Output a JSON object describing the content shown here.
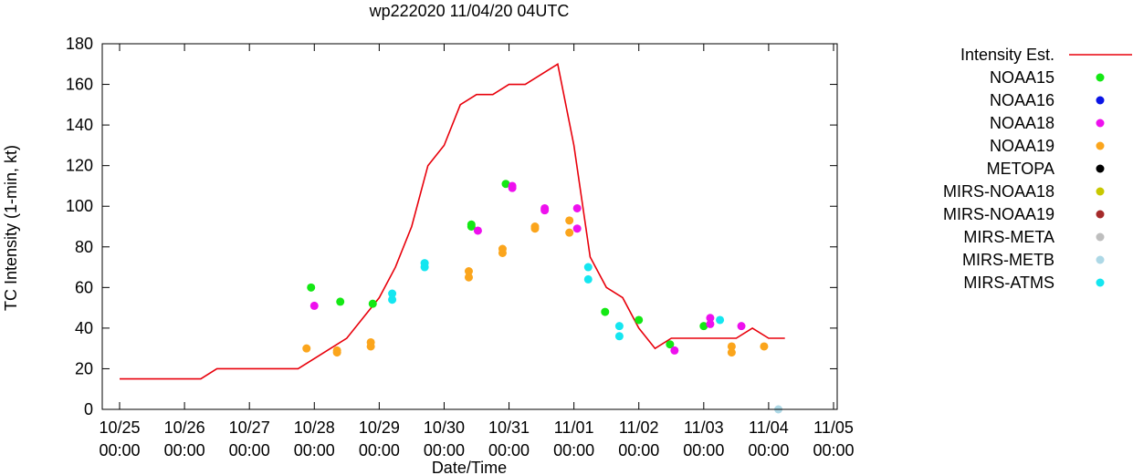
{
  "chart_data": {
    "type": "scatter",
    "title": "wp222020 11/04/20 04UTC",
    "xlabel": "Date/Time",
    "ylabel": "TC Intensity (1-min, kt)",
    "xlim": [
      0,
      11
    ],
    "ylim": [
      0,
      180
    ],
    "yticks": [
      0,
      20,
      40,
      60,
      80,
      100,
      120,
      140,
      160,
      180
    ],
    "xticks": [
      {
        "x": 0,
        "date": "10/25",
        "time": "00:00"
      },
      {
        "x": 1,
        "date": "10/26",
        "time": "00:00"
      },
      {
        "x": 2,
        "date": "10/27",
        "time": "00:00"
      },
      {
        "x": 3,
        "date": "10/28",
        "time": "00:00"
      },
      {
        "x": 4,
        "date": "10/29",
        "time": "00:00"
      },
      {
        "x": 5,
        "date": "10/30",
        "time": "00:00"
      },
      {
        "x": 6,
        "date": "10/31",
        "time": "00:00"
      },
      {
        "x": 7,
        "date": "11/01",
        "time": "00:00"
      },
      {
        "x": 8,
        "date": "11/02",
        "time": "00:00"
      },
      {
        "x": 9,
        "date": "11/03",
        "time": "00:00"
      },
      {
        "x": 10,
        "date": "11/04",
        "time": "00:00"
      },
      {
        "x": 11,
        "date": "11/05",
        "time": "00:00"
      }
    ],
    "x_units": "days since 10/25 00:00",
    "line_series": {
      "name": "Intensity Est.",
      "color": "#e8000b",
      "points": [
        [
          0.0,
          15
        ],
        [
          0.25,
          15
        ],
        [
          0.5,
          15
        ],
        [
          0.75,
          15
        ],
        [
          1.0,
          15
        ],
        [
          1.25,
          15
        ],
        [
          1.5,
          20
        ],
        [
          1.75,
          20
        ],
        [
          2.0,
          20
        ],
        [
          2.25,
          20
        ],
        [
          2.5,
          20
        ],
        [
          2.75,
          20
        ],
        [
          3.0,
          25
        ],
        [
          3.25,
          30
        ],
        [
          3.5,
          35
        ],
        [
          3.75,
          45
        ],
        [
          4.0,
          55
        ],
        [
          4.25,
          70
        ],
        [
          4.5,
          90
        ],
        [
          4.75,
          120
        ],
        [
          5.0,
          130
        ],
        [
          5.25,
          150
        ],
        [
          5.5,
          155
        ],
        [
          5.75,
          155
        ],
        [
          6.0,
          160
        ],
        [
          6.25,
          160
        ],
        [
          6.5,
          165
        ],
        [
          6.75,
          170
        ],
        [
          7.0,
          130
        ],
        [
          7.25,
          75
        ],
        [
          7.5,
          60
        ],
        [
          7.75,
          55
        ],
        [
          8.0,
          40
        ],
        [
          8.25,
          30
        ],
        [
          8.5,
          35
        ],
        [
          8.75,
          35
        ],
        [
          9.0,
          35
        ],
        [
          9.25,
          35
        ],
        [
          9.5,
          35
        ],
        [
          9.75,
          40
        ],
        [
          10.0,
          35
        ],
        [
          10.25,
          35
        ]
      ]
    },
    "legend_position": "right",
    "legend": [
      {
        "name": "Intensity Est.",
        "color": "#e8000b",
        "kind": "line"
      },
      {
        "name": "NOAA15",
        "color": "#14e814",
        "kind": "point"
      },
      {
        "name": "NOAA16",
        "color": "#0a14e6",
        "kind": "point"
      },
      {
        "name": "NOAA18",
        "color": "#ee10ee",
        "kind": "point"
      },
      {
        "name": "NOAA19",
        "color": "#fba51c",
        "kind": "point"
      },
      {
        "name": "METOPA",
        "color": "#000000",
        "kind": "point"
      },
      {
        "name": "MIRS-NOAA18",
        "color": "#c8c800",
        "kind": "point"
      },
      {
        "name": "MIRS-NOAA19",
        "color": "#a52a2a",
        "kind": "point"
      },
      {
        "name": "MIRS-META",
        "color": "#bebebe",
        "kind": "point"
      },
      {
        "name": "MIRS-METB",
        "color": "#add8e6",
        "kind": "point"
      },
      {
        "name": "MIRS-ATMS",
        "color": "#14e6f0",
        "kind": "point"
      }
    ],
    "point_series": [
      {
        "name": "NOAA15",
        "color": "#14e814",
        "points": [
          [
            2.95,
            60
          ],
          [
            3.4,
            53
          ],
          [
            3.9,
            52
          ],
          [
            5.42,
            91
          ],
          [
            5.42,
            90
          ],
          [
            5.95,
            111
          ],
          [
            7.48,
            48
          ],
          [
            8.0,
            44
          ],
          [
            8.48,
            32
          ],
          [
            9.0,
            41
          ]
        ]
      },
      {
        "name": "NOAA16",
        "color": "#0a14e6",
        "points": []
      },
      {
        "name": "NOAA18",
        "color": "#ee10ee",
        "points": [
          [
            3.0,
            51
          ],
          [
            5.52,
            88
          ],
          [
            6.05,
            110
          ],
          [
            6.05,
            109
          ],
          [
            6.55,
            99
          ],
          [
            6.55,
            98
          ],
          [
            7.05,
            99
          ],
          [
            7.05,
            89
          ],
          [
            8.55,
            29
          ],
          [
            9.1,
            45
          ],
          [
            9.1,
            42
          ],
          [
            9.58,
            41
          ]
        ]
      },
      {
        "name": "NOAA19",
        "color": "#fba51c",
        "points": [
          [
            2.88,
            30
          ],
          [
            3.35,
            29
          ],
          [
            3.35,
            28
          ],
          [
            3.87,
            33
          ],
          [
            3.87,
            31
          ],
          [
            5.38,
            68
          ],
          [
            5.38,
            65
          ],
          [
            5.9,
            79
          ],
          [
            5.9,
            77
          ],
          [
            6.4,
            90
          ],
          [
            6.4,
            89
          ],
          [
            6.93,
            93
          ],
          [
            6.93,
            87
          ],
          [
            9.43,
            31
          ],
          [
            9.43,
            28
          ],
          [
            9.93,
            31
          ]
        ]
      },
      {
        "name": "METOPA",
        "color": "#000000",
        "points": []
      },
      {
        "name": "MIRS-NOAA18",
        "color": "#c8c800",
        "points": []
      },
      {
        "name": "MIRS-NOAA19",
        "color": "#a52a2a",
        "points": []
      },
      {
        "name": "MIRS-META",
        "color": "#bebebe",
        "points": []
      },
      {
        "name": "MIRS-METB",
        "color": "#add8e6",
        "points": [
          [
            10.15,
            0
          ]
        ]
      },
      {
        "name": "MIRS-ATMS",
        "color": "#14e6f0",
        "points": [
          [
            4.2,
            57
          ],
          [
            4.2,
            54
          ],
          [
            4.7,
            72
          ],
          [
            4.7,
            70
          ],
          [
            7.22,
            70
          ],
          [
            7.22,
            64
          ],
          [
            7.7,
            41
          ],
          [
            7.7,
            36
          ],
          [
            9.25,
            44
          ]
        ]
      }
    ]
  }
}
